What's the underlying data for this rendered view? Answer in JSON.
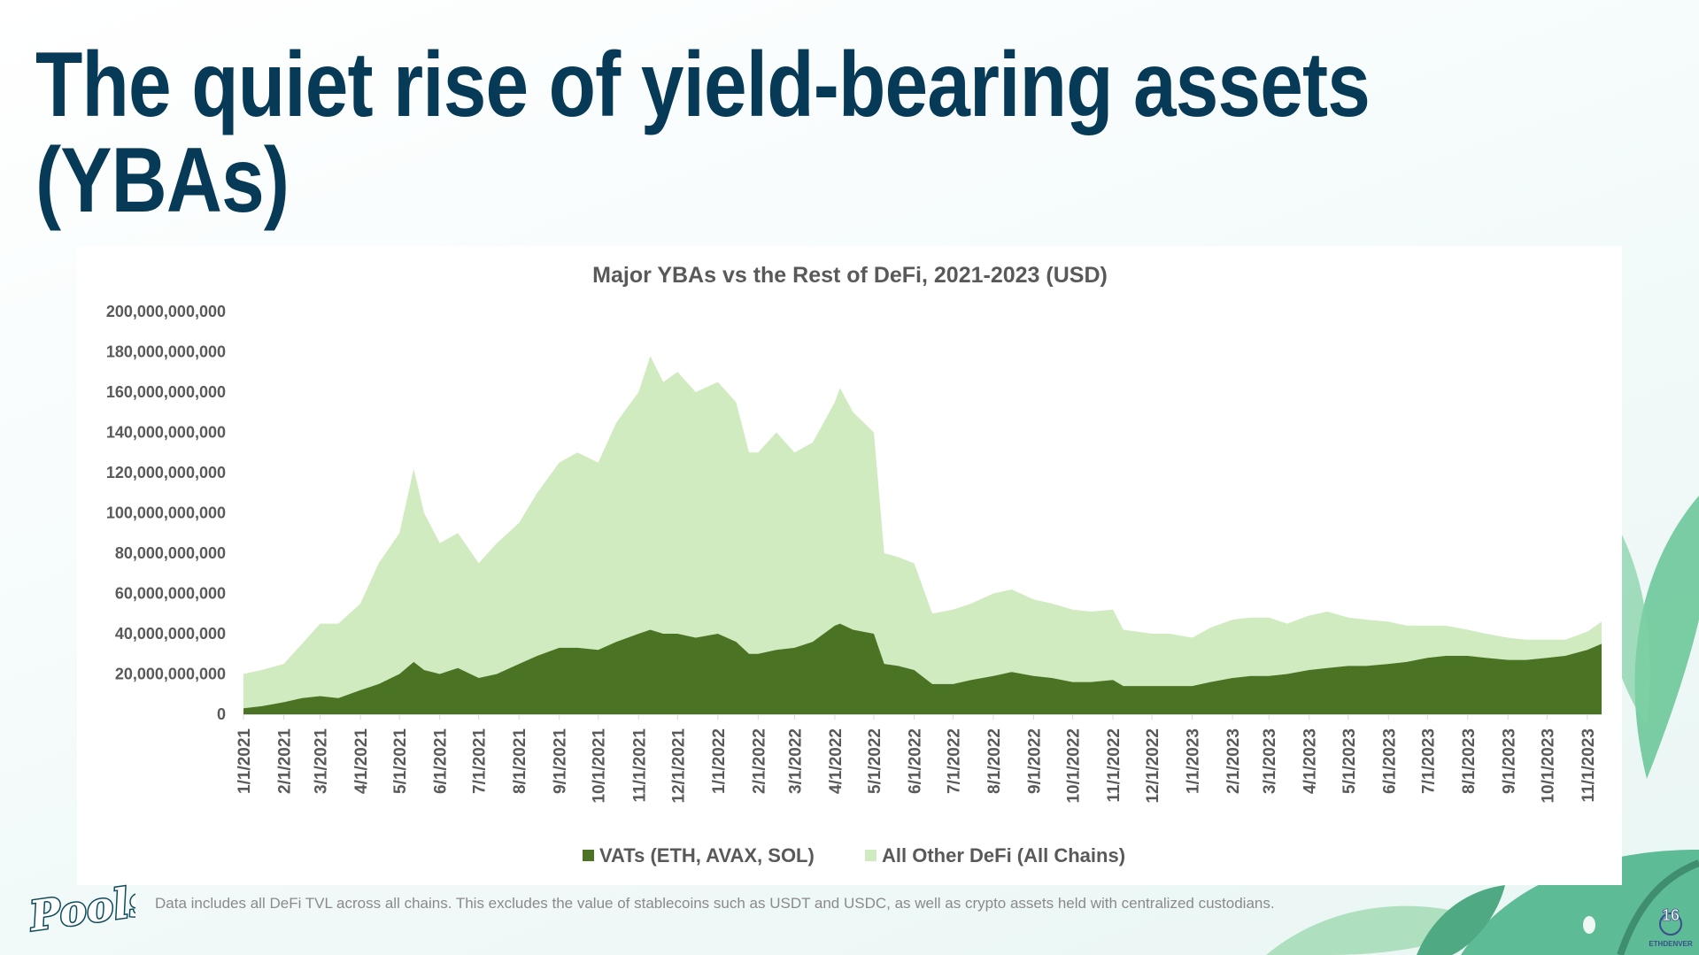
{
  "slide": {
    "title_line1": "The quiet rise of yield-bearing assets",
    "title_line2": "(YBAs)",
    "footnote": "Data includes all DeFi TVL across all chains. This excludes the value of stablecoins such as USDT and USDC, as well as crypto assets held with centralized custodians.",
    "logo_text": "Poolside",
    "page_number": "16",
    "event_logo_text": "ETHDENVER"
  },
  "colors": {
    "title": "#073a57",
    "vats": "#4a7323",
    "other": "#d0ebc0",
    "axis_text": "#595959"
  },
  "chart_data": {
    "type": "area",
    "stacked": true,
    "title": "Major YBAs vs the Rest of DeFi, 2021-2023 (USD)",
    "xlabel": "",
    "ylabel": "",
    "unit": "billion USD",
    "ylim": [
      0,
      200
    ],
    "xlim": [
      "2021-01-01",
      "2023-11-12"
    ],
    "y_ticks": [
      0,
      20,
      40,
      60,
      80,
      100,
      120,
      140,
      160,
      180,
      200
    ],
    "y_tick_labels": [
      "0",
      "20,000,000,000",
      "40,000,000,000",
      "60,000,000,000",
      "80,000,000,000",
      "100,000,000,000",
      "120,000,000,000",
      "140,000,000,000",
      "160,000,000,000",
      "180,000,000,000",
      "200,000,000,000"
    ],
    "x_ticks": [
      "2021-01-01",
      "2021-02-01",
      "2021-03-01",
      "2021-04-01",
      "2021-05-01",
      "2021-06-01",
      "2021-07-01",
      "2021-08-01",
      "2021-09-01",
      "2021-10-01",
      "2021-11-01",
      "2021-12-01",
      "2022-01-01",
      "2022-02-01",
      "2022-03-01",
      "2022-04-01",
      "2022-05-01",
      "2022-06-01",
      "2022-07-01",
      "2022-08-01",
      "2022-09-01",
      "2022-10-01",
      "2022-11-01",
      "2022-12-01",
      "2023-01-01",
      "2023-02-01",
      "2023-03-01",
      "2023-04-01",
      "2023-05-01",
      "2023-06-01",
      "2023-07-01",
      "2023-08-01",
      "2023-09-01",
      "2023-10-01",
      "2023-11-01"
    ],
    "x_tick_labels": [
      "1/1/2021",
      "2/1/2021",
      "3/1/2021",
      "4/1/2021",
      "5/1/2021",
      "6/1/2021",
      "7/1/2021",
      "8/1/2021",
      "9/1/2021",
      "10/1/2021",
      "11/1/2021",
      "12/1/2021",
      "1/1/2022",
      "2/1/2022",
      "3/1/2022",
      "4/1/2022",
      "5/1/2022",
      "6/1/2022",
      "7/1/2022",
      "8/1/2022",
      "9/1/2022",
      "10/1/2022",
      "11/1/2022",
      "12/1/2022",
      "1/1/2023",
      "2/1/2023",
      "3/1/2023",
      "4/1/2023",
      "5/1/2023",
      "6/1/2023",
      "7/1/2023",
      "8/1/2023",
      "9/1/2023",
      "10/1/2023",
      "11/1/2023"
    ],
    "grid": false,
    "legend_position": "bottom",
    "x": [
      "2021-01-01",
      "2021-01-15",
      "2021-02-01",
      "2021-02-15",
      "2021-03-01",
      "2021-03-15",
      "2021-04-01",
      "2021-04-15",
      "2021-05-01",
      "2021-05-12",
      "2021-05-20",
      "2021-06-01",
      "2021-06-15",
      "2021-07-01",
      "2021-07-15",
      "2021-08-01",
      "2021-08-15",
      "2021-09-01",
      "2021-09-15",
      "2021-10-01",
      "2021-10-15",
      "2021-11-01",
      "2021-11-10",
      "2021-11-20",
      "2021-12-01",
      "2021-12-15",
      "2022-01-01",
      "2022-01-15",
      "2022-01-25",
      "2022-02-01",
      "2022-02-15",
      "2022-03-01",
      "2022-03-15",
      "2022-04-01",
      "2022-04-05",
      "2022-04-15",
      "2022-05-01",
      "2022-05-09",
      "2022-05-20",
      "2022-06-01",
      "2022-06-15",
      "2022-07-01",
      "2022-07-15",
      "2022-08-01",
      "2022-08-15",
      "2022-09-01",
      "2022-09-15",
      "2022-10-01",
      "2022-10-15",
      "2022-11-01",
      "2022-11-09",
      "2022-12-01",
      "2022-12-15",
      "2023-01-01",
      "2023-01-15",
      "2023-02-01",
      "2023-02-15",
      "2023-03-01",
      "2023-03-15",
      "2023-04-01",
      "2023-04-15",
      "2023-05-01",
      "2023-05-15",
      "2023-06-01",
      "2023-06-15",
      "2023-07-01",
      "2023-07-15",
      "2023-08-01",
      "2023-08-15",
      "2023-09-01",
      "2023-09-15",
      "2023-10-01",
      "2023-10-15",
      "2023-11-01",
      "2023-11-12"
    ],
    "series": [
      {
        "name": "VATs (ETH, AVAX, SOL)",
        "values": [
          3,
          4,
          6,
          8,
          9,
          8,
          12,
          15,
          20,
          26,
          22,
          20,
          23,
          18,
          20,
          25,
          29,
          33,
          33,
          32,
          36,
          40,
          42,
          40,
          40,
          38,
          40,
          36,
          30,
          30,
          32,
          33,
          36,
          44,
          45,
          42,
          40,
          25,
          24,
          22,
          15,
          15,
          17,
          19,
          21,
          19,
          18,
          16,
          16,
          17,
          14,
          14,
          14,
          14,
          16,
          18,
          19,
          19,
          20,
          22,
          23,
          24,
          24,
          25,
          26,
          28,
          29,
          29,
          28,
          27,
          27,
          28,
          29,
          32,
          35
        ]
      },
      {
        "name": "All Other DeFi (All Chains)",
        "values": [
          17,
          18,
          19,
          27,
          36,
          37,
          43,
          60,
          70,
          96,
          78,
          65,
          67,
          57,
          65,
          70,
          81,
          92,
          97,
          93,
          109,
          120,
          136,
          125,
          130,
          122,
          125,
          119,
          100,
          100,
          108,
          97,
          99,
          111,
          117,
          108,
          100,
          55,
          54,
          53,
          35,
          37,
          38,
          41,
          41,
          38,
          37,
          36,
          35,
          35,
          28,
          26,
          26,
          24,
          27,
          29,
          29,
          29,
          25,
          27,
          28,
          24,
          23,
          21,
          18,
          16,
          15,
          13,
          12,
          11,
          10,
          9,
          8,
          9,
          11
        ]
      }
    ]
  }
}
